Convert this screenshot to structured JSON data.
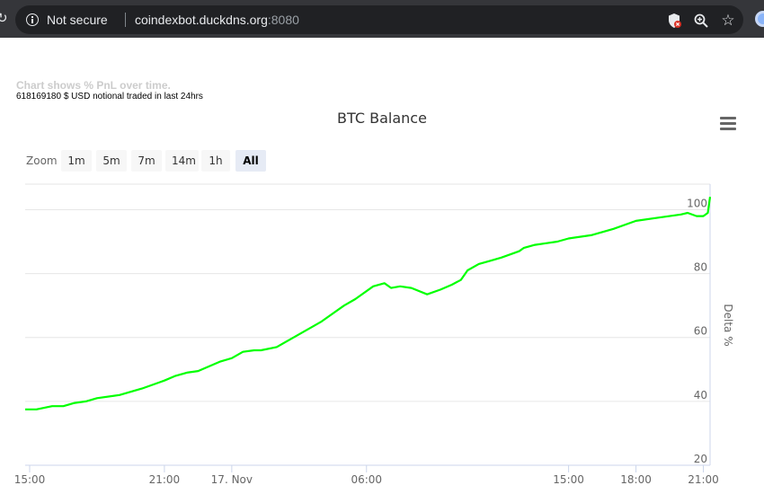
{
  "browser": {
    "security_label": "Not secure",
    "url_host": "coindexbot.duckdns.org",
    "url_port": ":8080"
  },
  "page": {
    "subtitle": "Chart shows % PnL over time.",
    "notional_text": "618169180 $ USD notional traded in last 24hrs"
  },
  "zoom": {
    "label": "Zoom",
    "buttons": [
      "1m",
      "5m",
      "7m",
      "14m",
      "1h",
      "All"
    ],
    "selected": "All"
  },
  "chart_data": {
    "type": "line",
    "title": "BTC Balance",
    "ylabel": "Delta %",
    "ylim": [
      20,
      108
    ],
    "y_ticks": [
      20,
      40,
      60,
      80,
      100
    ],
    "x_ticks": [
      "15:00",
      "21:00",
      "17. Nov",
      "06:00",
      "15:00",
      "18:00",
      "21:00"
    ],
    "x_tick_hours": [
      0,
      6,
      9,
      15,
      24,
      27,
      30
    ],
    "x_range_hours": [
      -0.2,
      30.3
    ],
    "line_color": "#00ff00",
    "grid": true,
    "series": [
      {
        "x": [
          -0.2,
          0.3,
          1,
          1.5,
          2,
          2.5,
          3,
          4,
          5,
          5.8,
          6,
          6.5,
          7,
          7.5,
          8,
          8.5,
          9,
          9.5,
          10,
          10.3,
          11,
          12,
          13,
          14,
          14.5,
          15.3,
          15.8,
          16.1,
          16.5,
          17,
          17.7,
          18.3,
          18.8,
          19.2,
          19.5,
          20,
          20.5,
          21,
          21.8,
          22,
          22.5,
          23,
          23.5,
          24,
          25,
          26,
          27,
          28,
          29,
          29.3,
          29.7,
          30,
          30.2,
          30.3
        ],
        "y": [
          37.5,
          37.5,
          38.5,
          38.5,
          39.5,
          40,
          41,
          42,
          44,
          46,
          46.5,
          48,
          49,
          49.5,
          51,
          52.5,
          53.5,
          55.5,
          56,
          56,
          57,
          61,
          65,
          70,
          72,
          76,
          77,
          75.5,
          76,
          75.5,
          73.5,
          75,
          76.5,
          78,
          81,
          83,
          84,
          85,
          87,
          88,
          89,
          89.5,
          90,
          91,
          92,
          94,
          96.5,
          97.5,
          98.5,
          99,
          98,
          98,
          99,
          104
        ]
      }
    ]
  }
}
